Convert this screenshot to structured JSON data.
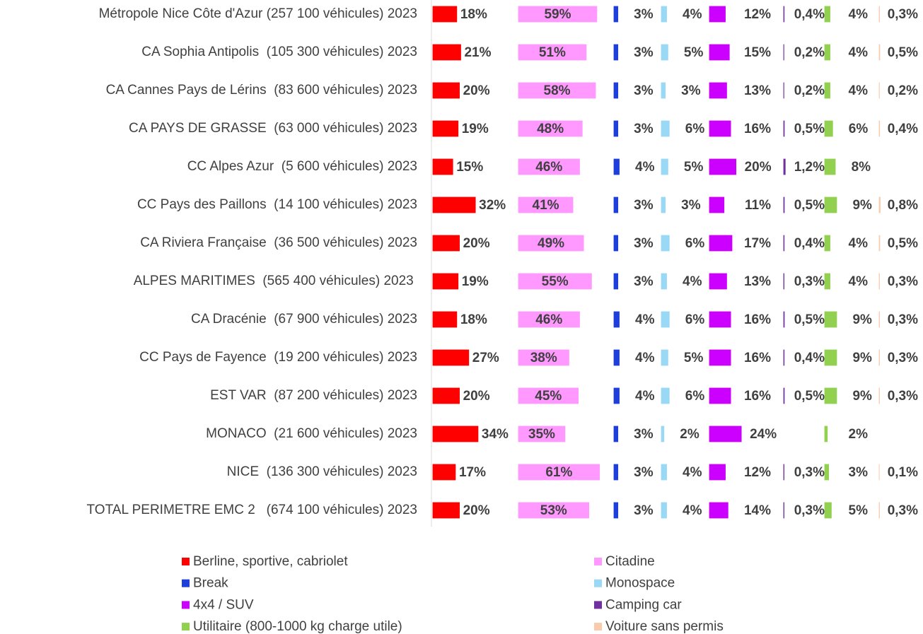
{
  "chart_data": {
    "type": "bar",
    "orientation": "horizontal",
    "layout": "panels",
    "categories": [
      "Métropole Nice Côte d'Azur (257 100 véhicules) 2023",
      "CA Sophia Antipolis  (105 300 véhicules) 2023",
      "CA Cannes Pays de Lérins  (83 600 véhicules) 2023",
      "CA PAYS DE GRASSE  (63 000 véhicules) 2023",
      "CC Alpes Azur  (5 600 véhicules) 2023",
      "CC Pays des Paillons  (14 100 véhicules) 2023",
      "CA Riviera Française  (36 500 véhicules) 2023",
      "ALPES MARITIMES  (565 400 véhicules) 2023 ",
      "CA Dracénie  (67 900 véhicules) 2023",
      "CC Pays de Fayence  (19 200 véhicules) 2023",
      "EST VAR  (87 200 véhicules) 2023",
      "MONACO  (21 600 véhicules) 2023",
      "NICE  (136 300 véhicules) 2023",
      "TOTAL PERIMETRE EMC 2   (674 100 véhicules) 2023"
    ],
    "series": [
      {
        "name": "Berline, sportive, cabriolet",
        "color": "#ff0000",
        "values": [
          18,
          21,
          20,
          19,
          15,
          32,
          20,
          19,
          18,
          27,
          20,
          34,
          17,
          20
        ],
        "value_labels": [
          "18%",
          "21%",
          "20%",
          "19%",
          "15%",
          "32%",
          "20%",
          "19%",
          "18%",
          "27%",
          "20%",
          "34%",
          "17%",
          "20%"
        ]
      },
      {
        "name": "Citadine",
        "color": "#ff99ff",
        "values": [
          59,
          51,
          58,
          48,
          46,
          41,
          49,
          55,
          46,
          38,
          45,
          35,
          61,
          53
        ],
        "value_labels": [
          "59%",
          "51%",
          "58%",
          "48%",
          "46%",
          "41%",
          "49%",
          "55%",
          "46%",
          "38%",
          "45%",
          "35%",
          "61%",
          "53%"
        ]
      },
      {
        "name": "Break",
        "color": "#1f3fdb",
        "values": [
          3,
          3,
          3,
          3,
          4,
          3,
          3,
          3,
          4,
          4,
          4,
          3,
          3,
          3
        ],
        "value_labels": [
          "3%",
          "3%",
          "3%",
          "3%",
          "4%",
          "3%",
          "3%",
          "3%",
          "4%",
          "4%",
          "4%",
          "3%",
          "3%",
          "3%"
        ]
      },
      {
        "name": "Monospace",
        "color": "#99d9f5",
        "values": [
          4,
          5,
          3,
          6,
          5,
          3,
          6,
          4,
          6,
          5,
          6,
          2,
          4,
          4
        ],
        "value_labels": [
          "4%",
          "5%",
          "3%",
          "6%",
          "5%",
          "3%",
          "6%",
          "4%",
          "6%",
          "5%",
          "6%",
          "2%",
          "4%",
          "4%"
        ]
      },
      {
        "name": "4x4 / SUV",
        "color": "#cc00ff",
        "values": [
          12,
          15,
          13,
          16,
          20,
          11,
          17,
          13,
          16,
          16,
          16,
          24,
          12,
          14
        ],
        "value_labels": [
          "12%",
          "15%",
          "13%",
          "16%",
          "20%",
          "11%",
          "17%",
          "13%",
          "16%",
          "16%",
          "16%",
          "24%",
          "12%",
          "14%"
        ]
      },
      {
        "name": "Camping car",
        "color": "#7030a0",
        "values": [
          0.4,
          0.2,
          0.2,
          0.5,
          1.2,
          0.5,
          0.4,
          0.3,
          0.5,
          0.4,
          0.5,
          null,
          0.3,
          0.3
        ],
        "value_labels": [
          "0,4%",
          "0,2%",
          "0,2%",
          "0,5%",
          "1,2%",
          "0,5%",
          "0,4%",
          "0,3%",
          "0,5%",
          "0,4%",
          "0,5%",
          null,
          "0,3%",
          "0,3%"
        ]
      },
      {
        "name": "Utilitaire (800-1000 kg charge utile)",
        "color": "#92d050",
        "values": [
          4,
          4,
          4,
          6,
          8,
          9,
          4,
          4,
          9,
          9,
          9,
          2,
          3,
          5
        ],
        "value_labels": [
          "4%",
          "4%",
          "4%",
          "6%",
          "8%",
          "9%",
          "4%",
          "4%",
          "9%",
          "9%",
          "9%",
          "2%",
          "3%",
          "5%"
        ]
      },
      {
        "name": "Voiture sans permis",
        "color": "#f8cbad",
        "values": [
          0.3,
          0.5,
          0.2,
          0.4,
          null,
          0.8,
          0.5,
          0.3,
          0.3,
          0.3,
          0.3,
          null,
          0.1,
          0.3
        ],
        "value_labels": [
          "0,3%",
          "0,5%",
          "0,2%",
          "0,4%",
          null,
          "0,8%",
          "0,5%",
          "0,3%",
          "0,3%",
          "0,3%",
          "0,3%",
          null,
          "0,1%",
          "0,3%"
        ]
      }
    ]
  }
}
